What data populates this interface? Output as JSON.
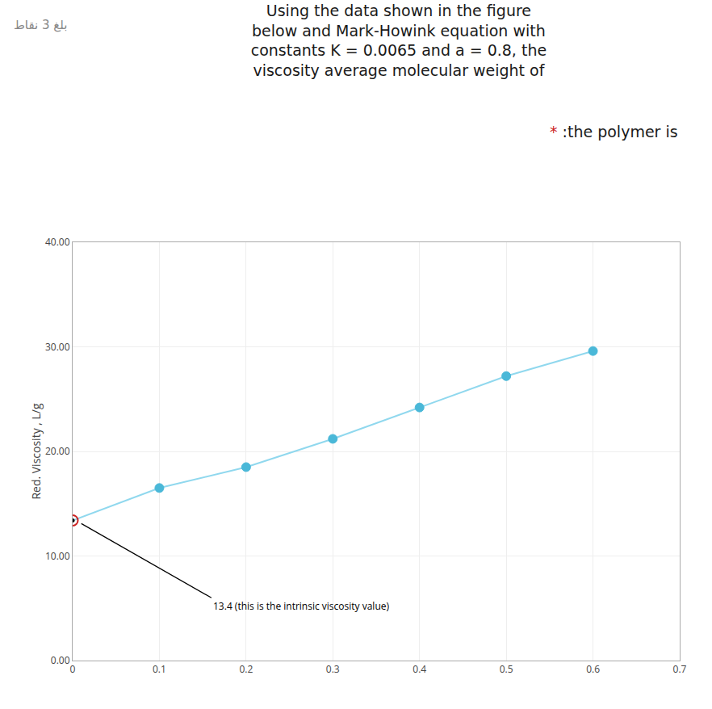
{
  "chart_data": {
    "type": "scatter",
    "title": [
      "Using the data shown in the figure",
      "below and Mark-Howink equation with",
      "constants K = 0.0065 and a = 0.8, the",
      "viscosity average molecular weight of"
    ],
    "subtitle": [
      {
        "text": "*",
        "color": "#cc2222"
      },
      {
        "text": ":the polymer is",
        "color": "#1a1a1a"
      }
    ],
    "y_label": "Red. Viscosity , L/g",
    "series": [
      {
        "type": "line",
        "color": "#90d8ee",
        "x": [
          0.0,
          0.1,
          0.2,
          0.3,
          0.4,
          0.5,
          0.6
        ],
        "values": [
          13.4,
          16.5,
          18.5,
          21.2,
          24.2,
          27.2,
          29.6
        ]
      },
      {
        "type": "scatter",
        "marker": "circle",
        "color": "#4ab8d8",
        "x": [
          0.1,
          0.2,
          0.3,
          0.4,
          0.5,
          0.6
        ],
        "values": [
          16.5,
          18.5,
          21.2,
          24.2,
          27.2,
          29.6
        ]
      },
      {
        "type": "scatter",
        "marker": "circle-open",
        "color": "#cc2222",
        "x": [
          0.0
        ],
        "values": [
          13.4
        ]
      },
      {
        "type": "scatter",
        "marker": "circle",
        "color": "#000000",
        "x": [
          0.0
        ],
        "values": [
          13.4
        ]
      }
    ],
    "annotations": [
      {
        "text": "بلغ 3 نقاط",
        "color": "#888888"
      },
      {
        "text": "13.4 (this is the intrinsic viscosity value)",
        "x": 0.01,
        "y": 13.1,
        "text_x": 0.16,
        "text_y": 6.0
      }
    ],
    "xlim": [
      0,
      0.7
    ],
    "xticks": [
      0,
      0.1,
      0.2,
      0.3,
      0.4,
      0.5,
      0.6,
      0.7
    ],
    "ylim": [
      0.0,
      40.0
    ],
    "yticks": [
      {
        "value": 0,
        "label": "0.00"
      },
      {
        "value": 10,
        "label": "10.00"
      },
      {
        "value": 20,
        "label": "20.00"
      },
      {
        "value": 30,
        "label": "30.00"
      },
      {
        "value": 40,
        "label": "40.00"
      }
    ],
    "grid": true
  }
}
